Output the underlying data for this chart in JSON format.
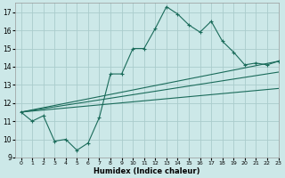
{
  "xlabel": "Humidex (Indice chaleur)",
  "xlim": [
    -0.5,
    23
  ],
  "ylim": [
    9,
    17.5
  ],
  "yticks": [
    9,
    10,
    11,
    12,
    13,
    14,
    15,
    16,
    17
  ],
  "xticks": [
    0,
    1,
    2,
    3,
    4,
    5,
    6,
    7,
    8,
    9,
    10,
    11,
    12,
    13,
    14,
    15,
    16,
    17,
    18,
    19,
    20,
    21,
    22,
    23
  ],
  "bg_color": "#cce8e8",
  "grid_color": "#aacccc",
  "line_color": "#1a6b5a",
  "series1_x": [
    0,
    1,
    2,
    3,
    4,
    5,
    6,
    7,
    8,
    9,
    10,
    11,
    12,
    13,
    14,
    15,
    16,
    17,
    18,
    19,
    20,
    21,
    22,
    23
  ],
  "series1_y": [
    11.5,
    11.0,
    11.3,
    9.9,
    10.0,
    9.4,
    9.8,
    11.2,
    13.6,
    13.6,
    15.0,
    15.0,
    16.1,
    17.3,
    16.9,
    16.3,
    15.9,
    16.5,
    15.4,
    14.8,
    14.1,
    14.2,
    14.1,
    14.3
  ],
  "trend1_x": [
    0,
    23
  ],
  "trend1_y": [
    11.5,
    14.3
  ],
  "trend2_x": [
    0,
    23
  ],
  "trend2_y": [
    11.5,
    13.7
  ],
  "trend3_x": [
    0,
    23
  ],
  "trend3_y": [
    11.5,
    12.8
  ]
}
